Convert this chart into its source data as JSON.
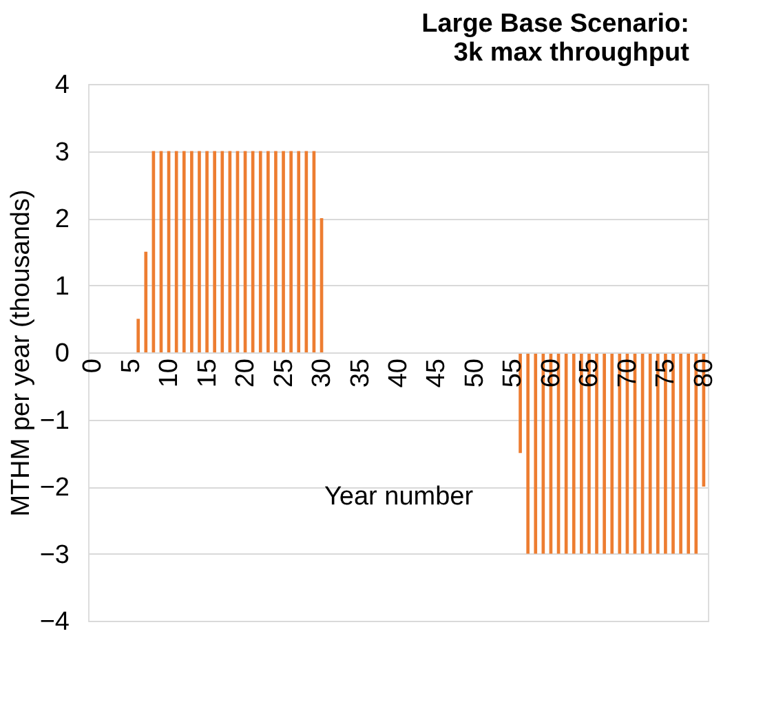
{
  "chart_data": {
    "type": "bar",
    "title": "Large Base Scenario:\n3k max throughput",
    "xlabel": "Year number",
    "ylabel": "MTHM per year (thousands)",
    "categories": [
      "0",
      null,
      null,
      null,
      null,
      "5",
      null,
      null,
      null,
      null,
      "10",
      null,
      null,
      null,
      null,
      "15",
      null,
      null,
      null,
      null,
      "20",
      null,
      null,
      null,
      null,
      "25",
      null,
      null,
      null,
      null,
      "30",
      null,
      null,
      null,
      null,
      "35",
      null,
      null,
      null,
      null,
      "40",
      null,
      null,
      null,
      null,
      "45",
      null,
      null,
      null,
      null,
      "50",
      null,
      null,
      null,
      null,
      "55",
      null,
      null,
      null,
      null,
      "60",
      null,
      null,
      null,
      null,
      "65",
      null,
      null,
      null,
      null,
      "70",
      null,
      null,
      null,
      null,
      "75",
      null,
      null,
      null,
      null,
      "80"
    ],
    "values": [
      0,
      0,
      0,
      0,
      0,
      0,
      0.5,
      1.5,
      3,
      3,
      3,
      3,
      3,
      3,
      3,
      3,
      3,
      3,
      3,
      3,
      3,
      3,
      3,
      3,
      3,
      3,
      3,
      3,
      3,
      3,
      2,
      0,
      0,
      0,
      0,
      0,
      0,
      0,
      0,
      0,
      0,
      0,
      0,
      0,
      0,
      0,
      0,
      0,
      0,
      0,
      0,
      0,
      0,
      0,
      0,
      0,
      -1.5,
      -3,
      -3,
      -3,
      -3,
      -3,
      -3,
      -3,
      -3,
      -3,
      -3,
      -3,
      -3,
      -3,
      -3,
      -3,
      -3,
      -3,
      -3,
      -3,
      -3,
      -3,
      -3,
      -3,
      -2
    ],
    "color": "#ed7d31",
    "ylim": [
      -4,
      4
    ],
    "yticks": [
      -4,
      -3,
      -2,
      -1,
      0,
      1,
      2,
      3,
      4
    ],
    "grid": "y"
  }
}
